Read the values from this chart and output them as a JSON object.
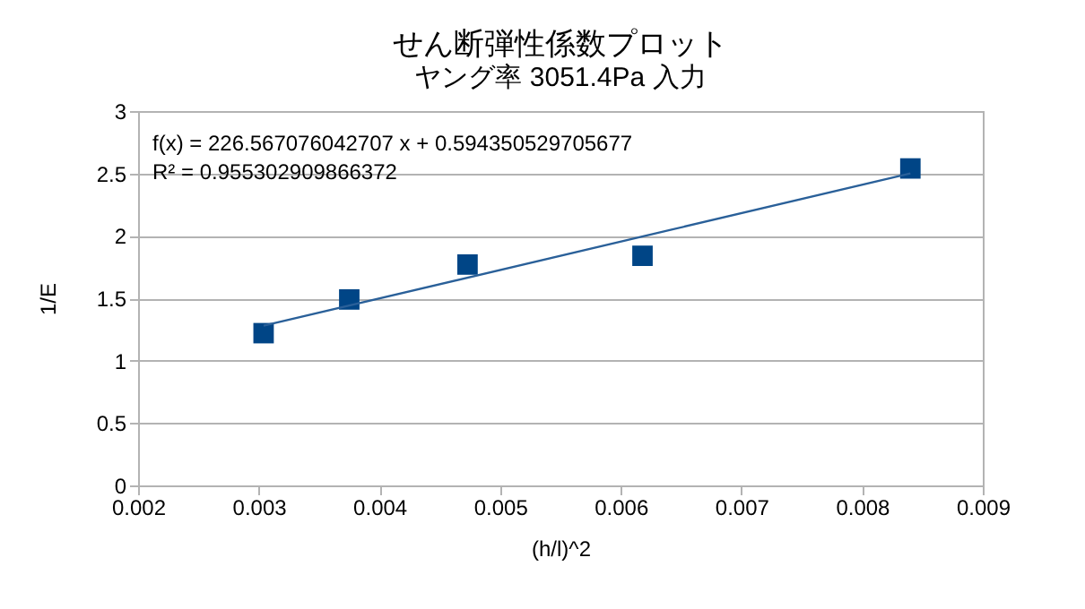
{
  "chart_data": {
    "type": "scatter",
    "title": "せん断弾性係数プロット",
    "subtitle": "ヤング率 3051.4Pa 入力",
    "xlabel": "(h/l)^2",
    "ylabel": "1/E",
    "annotations": [
      "f(x) = 226.567076042707 x + 0.594350529705677",
      "R² = 0.955302909866372"
    ],
    "series": [
      {
        "color": "#004586",
        "marker": "square",
        "x": [
          0.00304,
          0.00375,
          0.00473,
          0.00618,
          0.0084
        ],
        "values": [
          1.22,
          1.49,
          1.77,
          1.84,
          2.54
        ]
      },
      {
        "type": "line",
        "color": "#2a6099",
        "marker": "none",
        "x": [
          0.00304,
          0.0084
        ],
        "values": [
          1.28,
          2.5
        ]
      }
    ],
    "xlim": [
      0.002,
      0.009
    ],
    "xticks": [
      0.002,
      0.003,
      0.004,
      0.005,
      0.006,
      0.007,
      0.008,
      0.009
    ],
    "ylim": [
      0,
      3
    ],
    "yticks": [
      0,
      0.5,
      1,
      1.5,
      2,
      2.5,
      3
    ],
    "grid": "y"
  }
}
